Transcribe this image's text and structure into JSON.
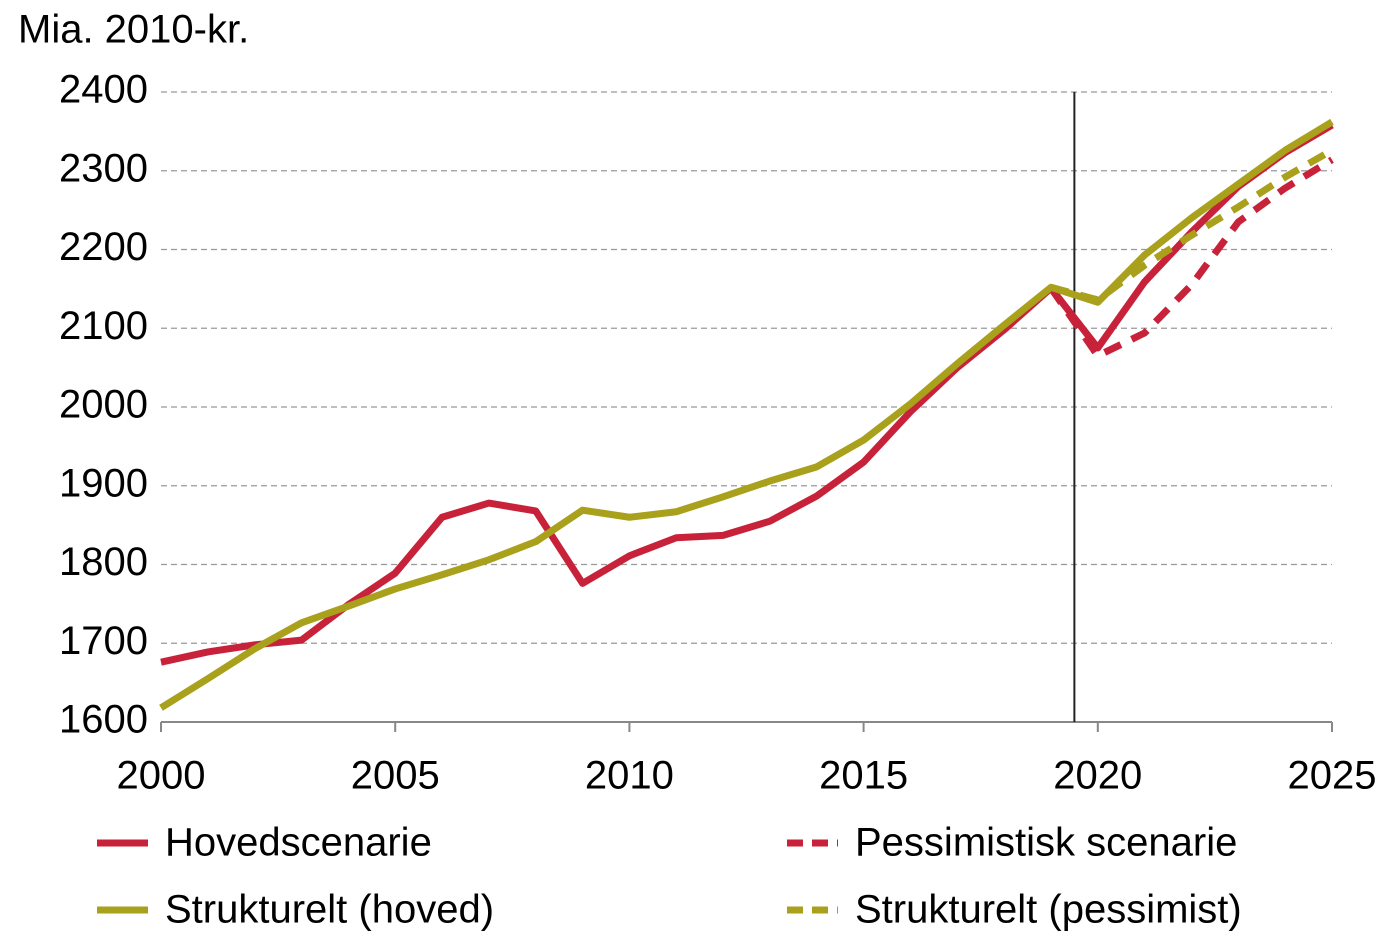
{
  "chart_data": {
    "type": "line",
    "y_label": "Mia. 2010-kr.",
    "x": [
      2000,
      2001,
      2002,
      2003,
      2004,
      2005,
      2006,
      2007,
      2008,
      2009,
      2010,
      2011,
      2012,
      2013,
      2014,
      2015,
      2016,
      2017,
      2018,
      2019,
      2020,
      2021,
      2022,
      2023,
      2024,
      2025
    ],
    "series": [
      {
        "name": "Hovedscenarie",
        "color": "#c8213a",
        "dashed": false,
        "values": [
          1676,
          1689,
          1698,
          1704,
          1749,
          1789,
          1860,
          1878,
          1868,
          1776,
          1811,
          1834,
          1837,
          1855,
          1887,
          1930,
          1994,
          2050,
          2098,
          2151,
          2075,
          2159,
          2222,
          2280,
          2323,
          2358
        ]
      },
      {
        "name": "Pessimistisk scenarie",
        "color": "#c8213a",
        "dashed": true,
        "values": [
          null,
          null,
          null,
          null,
          null,
          null,
          null,
          null,
          null,
          null,
          null,
          null,
          null,
          null,
          null,
          null,
          null,
          null,
          null,
          2151,
          2065,
          2094,
          2155,
          2235,
          2278,
          2314
        ]
      },
      {
        "name": "Strukturelt (hoved)",
        "color": "#a9a01c",
        "dashed": false,
        "values": [
          1618,
          1655,
          1693,
          1726,
          1747,
          1769,
          1787,
          1806,
          1829,
          1869,
          1860,
          1867,
          1886,
          1906,
          1924,
          1958,
          2004,
          2055,
          2104,
          2152,
          2133,
          2193,
          2240,
          2283,
          2326,
          2362
        ]
      },
      {
        "name": "Strukturelt (pessimist)",
        "color": "#a9a01c",
        "dashed": true,
        "values": [
          null,
          null,
          null,
          null,
          null,
          null,
          null,
          null,
          null,
          null,
          null,
          null,
          null,
          null,
          null,
          null,
          null,
          null,
          null,
          2152,
          2136,
          2180,
          2218,
          2254,
          2292,
          2326
        ]
      }
    ],
    "xlim": [
      2000,
      2025
    ],
    "xticks": [
      2000,
      2005,
      2010,
      2015,
      2020,
      2025
    ],
    "ylim": [
      1600,
      2400
    ],
    "yticks": [
      1600,
      1700,
      1800,
      1900,
      2000,
      2100,
      2200,
      2300,
      2400
    ],
    "grid": true,
    "vline": 2019.5
  }
}
